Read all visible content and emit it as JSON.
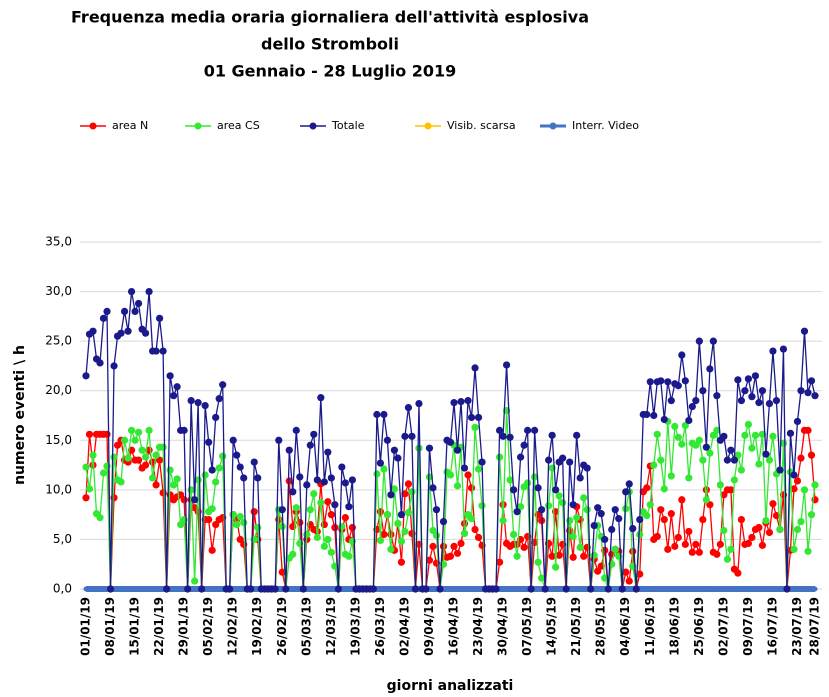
{
  "chart_data": {
    "type": "line",
    "title": [
      "Frequenza media oraria giornaliera dell'attività esplosiva",
      "dello Stromboli",
      "01 Gennaio  - 28 Luglio 2019"
    ],
    "x_label": "giorni analizzati",
    "y_label": "numero eventi \\ h",
    "ylim": [
      0,
      35
    ],
    "yticks": [
      {
        "value": 0,
        "label": "0,0"
      },
      {
        "value": 5,
        "label": "5,0"
      },
      {
        "value": 10,
        "label": "10,0"
      },
      {
        "value": 15,
        "label": "15,0"
      },
      {
        "value": 20,
        "label": "20,0"
      },
      {
        "value": 25,
        "label": "25,0"
      },
      {
        "value": 30,
        "label": "30,0"
      },
      {
        "value": 35,
        "label": "35,0"
      }
    ],
    "grid": true,
    "legend": "top",
    "categories": [
      "01/01/19",
      null,
      null,
      null,
      null,
      null,
      null,
      "08/01/19",
      null,
      null,
      null,
      null,
      null,
      null,
      "15/01/19",
      null,
      null,
      null,
      null,
      null,
      null,
      "22/01/19",
      null,
      null,
      null,
      null,
      null,
      null,
      "29/01/19",
      null,
      null,
      null,
      null,
      null,
      null,
      "05/02/19",
      null,
      null,
      null,
      null,
      null,
      null,
      "12/02/19",
      null,
      null,
      null,
      null,
      null,
      null,
      "19/02/19",
      null,
      null,
      null,
      null,
      null,
      null,
      "26/02/19",
      null,
      null,
      null,
      null,
      null,
      null,
      "05/03/19",
      null,
      null,
      null,
      null,
      null,
      null,
      "12/03/19",
      null,
      null,
      null,
      null,
      null,
      null,
      "19/03/19",
      null,
      null,
      null,
      null,
      null,
      null,
      "26/03/19",
      null,
      null,
      null,
      null,
      null,
      null,
      "02/04/19",
      null,
      null,
      null,
      null,
      null,
      null,
      "09/04/19",
      null,
      null,
      null,
      null,
      null,
      null,
      "16/04/19",
      null,
      null,
      null,
      null,
      null,
      null,
      "23/04/19",
      null,
      null,
      null,
      null,
      null,
      null,
      "30/04/19",
      null,
      null,
      null,
      null,
      null,
      null,
      "07/05/19",
      null,
      null,
      null,
      null,
      null,
      null,
      "14/05/19",
      null,
      null,
      null,
      null,
      null,
      null,
      "21/05/19",
      null,
      null,
      null,
      null,
      null,
      null,
      "28/05/19",
      null,
      null,
      null,
      null,
      null,
      null,
      "04/06/19",
      null,
      null,
      null,
      null,
      null,
      null,
      "11/06/19",
      null,
      null,
      null,
      null,
      null,
      null,
      "18/06/19",
      null,
      null,
      null,
      null,
      null,
      null,
      "25/06/19",
      null,
      null,
      null,
      null,
      null,
      null,
      "02/07/19",
      null,
      null,
      null,
      null,
      null,
      null,
      "09/07/19",
      null,
      null,
      null,
      null,
      null,
      null,
      "16/07/19",
      null,
      null,
      null,
      null,
      null,
      null,
      "23/07/19",
      null,
      null,
      null,
      null,
      "28/07/19"
    ],
    "series": [
      {
        "name": "area N",
        "color": "#ff0000",
        "style": "marker",
        "values": [
          9.2,
          15.6,
          12.5,
          15.6,
          15.6,
          15.6,
          15.6,
          0,
          9.2,
          14.5,
          15.0,
          13.0,
          12.8,
          14.0,
          13.0,
          13.0,
          12.2,
          12.5,
          14.0,
          12.8,
          10.5,
          13.0,
          9.7,
          0,
          9.5,
          9.0,
          9.3,
          9.5,
          9.0,
          0,
          9.0,
          8.2,
          7.8,
          0,
          7.0,
          7.0,
          3.9,
          6.5,
          7.0,
          7.2,
          0,
          0,
          7.5,
          7.0,
          5.0,
          4.5,
          0,
          0,
          7.8,
          5.0,
          0,
          0,
          0,
          0,
          0,
          7.0,
          1.7,
          0,
          10.9,
          6.3,
          7.8,
          6.7,
          0,
          5.0,
          6.5,
          6.0,
          5.8,
          10.6,
          6.5,
          8.8,
          7.5,
          6.2,
          0,
          6.0,
          7.2,
          5.0,
          6.2,
          0,
          0,
          0,
          0,
          0,
          0,
          6.0,
          7.8,
          5.5,
          7.5,
          5.5,
          3.9,
          6.6,
          2.7,
          9.6,
          10.6,
          5.6,
          0,
          4.5,
          0,
          0,
          2.9,
          4.3,
          2.6,
          0,
          4.3,
          3.2,
          3.3,
          4.3,
          3.6,
          4.6,
          6.6,
          11.5,
          10.2,
          6.0,
          5.2,
          4.4,
          0,
          0,
          0,
          0,
          2.7,
          8.5,
          4.6,
          4.3,
          4.5,
          4.5,
          5.0,
          4.2,
          5.3,
          0,
          4.7,
          7.5,
          6.9,
          0,
          4.6,
          3.3,
          7.8,
          3.4,
          4.5,
          0,
          5.9,
          3.2,
          8.3,
          7.0,
          3.3,
          4.2,
          0,
          3.0,
          1.8,
          2.3,
          3.9,
          0,
          3.5,
          4.0,
          3.8,
          0,
          1.7,
          0.8,
          3.8,
          0,
          1.5,
          9.8,
          10.2,
          12.4,
          5.0,
          5.3,
          8.0,
          7.0,
          4.0,
          7.6,
          4.3,
          5.2,
          9.0,
          4.5,
          5.8,
          3.7,
          4.5,
          3.7,
          7.0,
          10.0,
          8.5,
          3.7,
          3.5,
          4.5,
          9.5,
          10.0,
          10.0,
          2.0,
          1.6,
          7.0,
          4.5,
          4.6,
          5.2,
          6.0,
          6.2,
          4.4,
          6.7,
          5.7,
          8.6,
          7.4,
          6.0,
          9.5,
          0,
          3.9,
          10.1,
          10.9,
          13.2,
          16.0,
          16.0,
          13.5,
          9.0
        ]
      },
      {
        "name": "area CS",
        "color": "#33e833",
        "style": "marker",
        "values": [
          12.3,
          10.1,
          13.5,
          7.6,
          7.2,
          11.7,
          12.4,
          0,
          13.3,
          11.0,
          10.8,
          15.0,
          13.2,
          16.0,
          15.0,
          15.8,
          14.0,
          13.3,
          16.0,
          11.2,
          13.5,
          14.3,
          14.3,
          0,
          12.0,
          10.5,
          11.1,
          6.5,
          7.0,
          0,
          10.0,
          0.8,
          11.0,
          0,
          11.5,
          7.8,
          8.1,
          10.8,
          12.2,
          13.4,
          0,
          0,
          7.5,
          6.5,
          7.3,
          6.7,
          0,
          0,
          5.0,
          6.2,
          0,
          0,
          0,
          0,
          0,
          8.0,
          6.3,
          0,
          3.1,
          3.5,
          8.2,
          4.6,
          0,
          5.5,
          8.0,
          9.6,
          5.2,
          8.7,
          4.3,
          5.0,
          3.7,
          2.3,
          0,
          6.3,
          3.5,
          3.3,
          4.8,
          0,
          0,
          0,
          0,
          0,
          0,
          11.6,
          4.9,
          12.1,
          7.5,
          4.0,
          10.1,
          6.6,
          4.8,
          5.8,
          7.7,
          9.8,
          0,
          14.2,
          0,
          0,
          11.3,
          5.9,
          5.4,
          0,
          2.5,
          11.8,
          11.5,
          14.5,
          10.4,
          14.3,
          5.6,
          7.5,
          7.1,
          16.3,
          12.1,
          8.4,
          0,
          0,
          0,
          0,
          13.3,
          6.9,
          18.0,
          11.0,
          5.5,
          3.3,
          8.3,
          10.3,
          10.7,
          0,
          11.3,
          2.7,
          1.1,
          0,
          8.4,
          12.2,
          2.2,
          9.4,
          8.7,
          0,
          6.9,
          5.3,
          7.2,
          4.2,
          9.2,
          8.0,
          0,
          3.4,
          6.4,
          5.3,
          1.1,
          0,
          2.5,
          4.0,
          3.3,
          0,
          8.1,
          9.8,
          2.3,
          0,
          5.5,
          7.8,
          7.4,
          8.5,
          12.5,
          15.6,
          13.0,
          10.1,
          16.9,
          11.4,
          16.4,
          15.3,
          14.6,
          16.5,
          11.2,
          14.7,
          14.5,
          15.0,
          13.0,
          9.0,
          13.7,
          15.5,
          16.0,
          10.5,
          5.9,
          3.0,
          4.0,
          11.0,
          13.5,
          12.0,
          15.5,
          16.6,
          14.2,
          15.5,
          12.6,
          15.6,
          6.9,
          13.0,
          15.4,
          11.6,
          6.0,
          14.7,
          0,
          11.8,
          4.0,
          6.0,
          6.8,
          10.0,
          3.8,
          7.5,
          10.5
        ]
      },
      {
        "name": "Totale",
        "color": "#1a1a8c",
        "style": "marker",
        "values": [
          21.5,
          25.7,
          26.0,
          23.2,
          22.8,
          27.3,
          28.0,
          0,
          22.5,
          25.5,
          25.8,
          28.0,
          26.0,
          30.0,
          28.0,
          28.8,
          26.2,
          25.8,
          30.0,
          24.0,
          24.0,
          27.3,
          24.0,
          0,
          21.5,
          19.5,
          20.4,
          16.0,
          16.0,
          0,
          19.0,
          9.0,
          18.8,
          0,
          18.5,
          14.8,
          12.0,
          17.3,
          19.2,
          20.6,
          0,
          0,
          15.0,
          13.5,
          12.3,
          11.2,
          0,
          0,
          12.8,
          11.2,
          0,
          0,
          0,
          0,
          0,
          15.0,
          8.0,
          0,
          14.0,
          9.8,
          16.0,
          11.3,
          0,
          10.5,
          14.5,
          15.6,
          11.0,
          19.3,
          10.8,
          13.8,
          11.2,
          8.5,
          0,
          12.3,
          10.7,
          8.3,
          11.0,
          0,
          0,
          0,
          0,
          0,
          0,
          17.6,
          12.7,
          17.6,
          15.0,
          9.5,
          14.0,
          13.2,
          7.5,
          15.4,
          18.3,
          15.4,
          0,
          18.7,
          0,
          0,
          14.2,
          10.2,
          8.0,
          0,
          6.8,
          15.0,
          14.8,
          18.8,
          14.0,
          18.9,
          12.2,
          19.0,
          17.3,
          22.3,
          17.3,
          12.8,
          0,
          0,
          0,
          0,
          16.0,
          15.4,
          22.6,
          15.3,
          10.0,
          7.8,
          13.3,
          14.5,
          16.0,
          0,
          16.0,
          10.2,
          8.0,
          0,
          13.0,
          15.5,
          10.0,
          12.8,
          13.2,
          0,
          12.8,
          8.5,
          15.5,
          11.2,
          12.5,
          12.2,
          0,
          6.4,
          8.2,
          7.6,
          5.0,
          0,
          6.0,
          8.0,
          7.1,
          0,
          9.8,
          10.6,
          6.1,
          0,
          7.0,
          17.6,
          17.6,
          20.9,
          17.5,
          20.9,
          21.0,
          17.1,
          20.9,
          19.0,
          20.7,
          20.5,
          23.6,
          21.0,
          17.0,
          18.4,
          19.0,
          25.0,
          20.0,
          14.3,
          22.2,
          25.0,
          19.5,
          15.0,
          15.4,
          13.0,
          14.0,
          13.0,
          21.1,
          19.0,
          20.0,
          21.2,
          19.4,
          21.5,
          18.8,
          20.0,
          13.6,
          18.7,
          24.0,
          19.0,
          12.0,
          24.2,
          0,
          15.7,
          11.5,
          16.9,
          20.0,
          26.0,
          19.8,
          21.0,
          19.5
        ]
      },
      {
        "name": "Visib. scarsa",
        "color": "#ffc000",
        "style": "marker",
        "values": [
          null,
          null,
          null,
          null,
          null,
          null,
          null,
          null,
          null,
          null,
          null,
          null,
          null,
          null,
          null,
          null,
          null,
          null,
          null,
          null,
          null,
          null,
          null,
          null,
          null,
          null,
          null,
          null,
          null,
          null,
          null,
          null,
          null,
          null,
          null,
          null,
          null,
          null,
          null,
          null,
          null,
          null,
          null,
          null,
          null,
          null,
          null,
          null,
          null,
          null,
          null,
          null,
          null,
          null,
          null,
          null,
          null,
          null,
          null,
          null,
          null,
          null,
          null,
          null,
          null,
          null,
          null,
          null,
          null,
          null,
          null,
          null,
          null,
          null,
          null,
          null,
          null,
          null,
          null,
          null,
          null,
          null,
          null,
          null,
          null,
          null,
          null,
          null,
          null,
          null,
          null,
          null,
          null,
          null,
          null,
          null,
          null,
          null,
          null,
          null,
          null,
          null,
          null,
          null,
          null,
          null,
          null,
          null,
          null,
          null,
          null,
          null,
          null,
          null,
          null,
          null,
          null,
          null,
          null,
          null,
          null,
          null,
          null,
          null,
          null,
          null,
          null,
          null,
          null,
          null,
          null,
          null,
          null,
          null,
          null,
          null,
          null,
          null,
          null,
          null,
          null,
          null,
          null,
          null,
          null,
          null,
          null,
          null,
          null,
          null,
          null,
          null,
          null,
          null,
          null,
          null,
          null,
          null,
          null,
          null,
          null,
          null,
          null,
          null,
          null,
          null,
          null,
          null,
          null,
          null,
          null,
          null,
          null,
          null,
          null,
          null,
          null,
          null,
          null,
          null,
          null,
          null,
          null,
          null,
          null,
          null,
          null,
          null,
          null,
          null,
          null,
          null,
          null,
          null,
          null,
          null,
          null,
          null,
          null,
          null,
          null,
          null,
          null,
          null,
          null,
          null,
          null,
          null,
          null
        ]
      },
      {
        "name": "Interr. Video",
        "color": "#4472c4",
        "style": "thick",
        "values": [
          0,
          0,
          0,
          0,
          0,
          0,
          0,
          0,
          0,
          0,
          0,
          0,
          0,
          0,
          0,
          0,
          0,
          0,
          0,
          0,
          0,
          0,
          0,
          0,
          0,
          0,
          0,
          0,
          0,
          0,
          0,
          0,
          0,
          0,
          0,
          0,
          0,
          0,
          0,
          0,
          0,
          0,
          0,
          0,
          0,
          0,
          0,
          0,
          0,
          0,
          0,
          0,
          0,
          0,
          0,
          0,
          0,
          0,
          0,
          0,
          0,
          0,
          0,
          0,
          0,
          0,
          0,
          0,
          0,
          0,
          0,
          0,
          0,
          0,
          0,
          0,
          0,
          0,
          0,
          0,
          0,
          0,
          0,
          0,
          0,
          0,
          0,
          0,
          0,
          0,
          0,
          0,
          0,
          0,
          0,
          0,
          0,
          0,
          0,
          0,
          0,
          0,
          0,
          0,
          0,
          0,
          0,
          0,
          0,
          0,
          0,
          0,
          0,
          0,
          0,
          0,
          0,
          0,
          0,
          0,
          0,
          0,
          0,
          0,
          0,
          0,
          0,
          0,
          0,
          0,
          0,
          0,
          0,
          0,
          0,
          0,
          0,
          0,
          0,
          0,
          0,
          0,
          0,
          0,
          0,
          0,
          0,
          0,
          0,
          0,
          0,
          0,
          0,
          0,
          0,
          0,
          0,
          0,
          0,
          0,
          0,
          0,
          0,
          0,
          0,
          0,
          0,
          0,
          0,
          0,
          0,
          0,
          0,
          0,
          0,
          0,
          0,
          0,
          0,
          0,
          0,
          0,
          0,
          0,
          0,
          0,
          0,
          0,
          0,
          0,
          0,
          0,
          0,
          0,
          0,
          0,
          0,
          0,
          0,
          0,
          0,
          0,
          0,
          0,
          0,
          0,
          0,
          0,
          0
        ]
      }
    ]
  }
}
